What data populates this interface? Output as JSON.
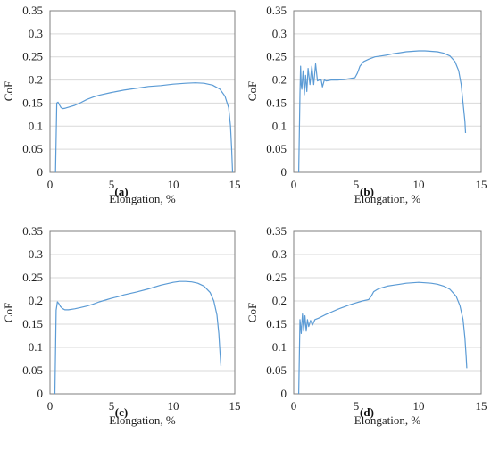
{
  "chart_data": [
    {
      "type": "line",
      "panel_label": "(a)",
      "xlabel": "Elongation, %",
      "ylabel": "CoF",
      "xlim": [
        0,
        15
      ],
      "ylim": [
        0,
        0.35
      ],
      "xticks": [
        "0",
        "5",
        "10",
        "15"
      ],
      "yticks": [
        "0",
        "0.05",
        "0.1",
        "0.15",
        "0.2",
        "0.25",
        "0.3",
        "0.35"
      ],
      "grid": "horizontal",
      "series": [
        {
          "color": "#5b9bd5",
          "x": [
            0.45,
            0.55,
            0.65,
            0.75,
            0.9,
            1.05,
            1.25,
            1.5,
            2.0,
            2.5,
            3.0,
            3.5,
            4.0,
            5.0,
            6.0,
            7.0,
            8.0,
            9.0,
            10.0,
            11.0,
            11.8,
            12.5,
            13.2,
            13.8,
            14.2,
            14.5,
            14.65,
            14.75,
            14.82
          ],
          "y": [
            0.0,
            0.15,
            0.152,
            0.147,
            0.14,
            0.138,
            0.139,
            0.141,
            0.145,
            0.151,
            0.158,
            0.163,
            0.167,
            0.173,
            0.178,
            0.182,
            0.186,
            0.188,
            0.191,
            0.193,
            0.194,
            0.193,
            0.189,
            0.18,
            0.165,
            0.14,
            0.1,
            0.05,
            0.0
          ]
        }
      ]
    },
    {
      "type": "line",
      "panel_label": "(b)",
      "xlabel": "Elongation, %",
      "ylabel": "CoF",
      "xlim": [
        0,
        15
      ],
      "ylim": [
        0,
        0.35
      ],
      "xticks": [
        "0",
        "5",
        "10",
        "15"
      ],
      "yticks": [
        "0",
        "0.05",
        "0.1",
        "0.15",
        "0.2",
        "0.25",
        "0.3",
        "0.35"
      ],
      "grid": "horizontal",
      "series": [
        {
          "color": "#5b9bd5",
          "x": [
            0.4,
            0.5,
            0.55,
            0.6,
            0.65,
            0.75,
            0.85,
            0.95,
            1.05,
            1.15,
            1.3,
            1.45,
            1.6,
            1.75,
            1.9,
            2.05,
            2.2,
            2.3,
            2.45,
            2.6,
            3.0,
            3.5,
            4.0,
            4.5,
            4.9,
            5.1,
            5.3,
            5.6,
            6.0,
            6.5,
            7.0,
            7.5,
            8.0,
            8.5,
            9.0,
            9.5,
            10.0,
            10.5,
            11.0,
            11.5,
            12.0,
            12.5,
            12.9,
            13.2,
            13.4,
            13.55,
            13.7,
            13.75
          ],
          "y": [
            0.0,
            0.17,
            0.23,
            0.19,
            0.18,
            0.22,
            0.168,
            0.21,
            0.175,
            0.225,
            0.19,
            0.23,
            0.19,
            0.235,
            0.198,
            0.2,
            0.2,
            0.185,
            0.2,
            0.198,
            0.2,
            0.2,
            0.201,
            0.203,
            0.205,
            0.215,
            0.23,
            0.24,
            0.245,
            0.25,
            0.252,
            0.254,
            0.257,
            0.259,
            0.261,
            0.262,
            0.263,
            0.263,
            0.262,
            0.261,
            0.258,
            0.252,
            0.24,
            0.22,
            0.19,
            0.15,
            0.11,
            0.085
          ]
        }
      ]
    },
    {
      "type": "line",
      "panel_label": "(c)",
      "xlabel": "Elongation, %",
      "ylabel": "CoF",
      "xlim": [
        0,
        15
      ],
      "ylim": [
        0,
        0.35
      ],
      "xticks": [
        "0",
        "5",
        "10",
        "15"
      ],
      "yticks": [
        "0",
        "0.05",
        "0.1",
        "0.15",
        "0.2",
        "0.25",
        "0.3",
        "0.35"
      ],
      "grid": "horizontal",
      "series": [
        {
          "color": "#5b9bd5",
          "x": [
            0.4,
            0.5,
            0.6,
            0.7,
            0.85,
            1.0,
            1.2,
            1.5,
            2.0,
            2.5,
            3.0,
            3.5,
            4.0,
            4.5,
            5.0,
            5.5,
            6.0,
            7.0,
            8.0,
            9.0,
            10.0,
            10.5,
            11.0,
            11.5,
            12.0,
            12.5,
            13.0,
            13.3,
            13.55,
            13.7,
            13.8,
            13.88
          ],
          "y": [
            0.0,
            0.18,
            0.198,
            0.195,
            0.188,
            0.184,
            0.181,
            0.181,
            0.183,
            0.186,
            0.189,
            0.193,
            0.198,
            0.202,
            0.206,
            0.209,
            0.213,
            0.219,
            0.226,
            0.234,
            0.24,
            0.242,
            0.242,
            0.241,
            0.238,
            0.232,
            0.218,
            0.2,
            0.17,
            0.13,
            0.09,
            0.06
          ]
        }
      ]
    },
    {
      "type": "line",
      "panel_label": "(d)",
      "xlabel": "Elongation, %",
      "ylabel": "CoF",
      "xlim": [
        0,
        15
      ],
      "ylim": [
        0,
        0.35
      ],
      "xticks": [
        "0",
        "5",
        "10",
        "15"
      ],
      "yticks": [
        "0",
        "0.05",
        "0.1",
        "0.15",
        "0.2",
        "0.25",
        "0.3",
        "0.35"
      ],
      "grid": "horizontal",
      "series": [
        {
          "color": "#5b9bd5",
          "x": [
            0.4,
            0.5,
            0.6,
            0.7,
            0.8,
            0.9,
            1.0,
            1.1,
            1.2,
            1.35,
            1.5,
            1.7,
            2.0,
            2.5,
            3.0,
            3.5,
            4.0,
            4.5,
            5.0,
            5.5,
            6.0,
            6.2,
            6.4,
            6.7,
            7.0,
            7.5,
            8.0,
            8.5,
            9.0,
            9.5,
            10.0,
            10.5,
            11.0,
            11.5,
            12.0,
            12.5,
            13.0,
            13.3,
            13.55,
            13.7,
            13.8,
            13.85
          ],
          "y": [
            0.0,
            0.16,
            0.13,
            0.172,
            0.135,
            0.168,
            0.135,
            0.16,
            0.145,
            0.158,
            0.148,
            0.16,
            0.163,
            0.17,
            0.176,
            0.182,
            0.187,
            0.192,
            0.196,
            0.2,
            0.203,
            0.21,
            0.22,
            0.225,
            0.228,
            0.232,
            0.234,
            0.236,
            0.238,
            0.239,
            0.24,
            0.239,
            0.238,
            0.236,
            0.232,
            0.225,
            0.21,
            0.19,
            0.16,
            0.12,
            0.08,
            0.055
          ]
        }
      ]
    }
  ]
}
